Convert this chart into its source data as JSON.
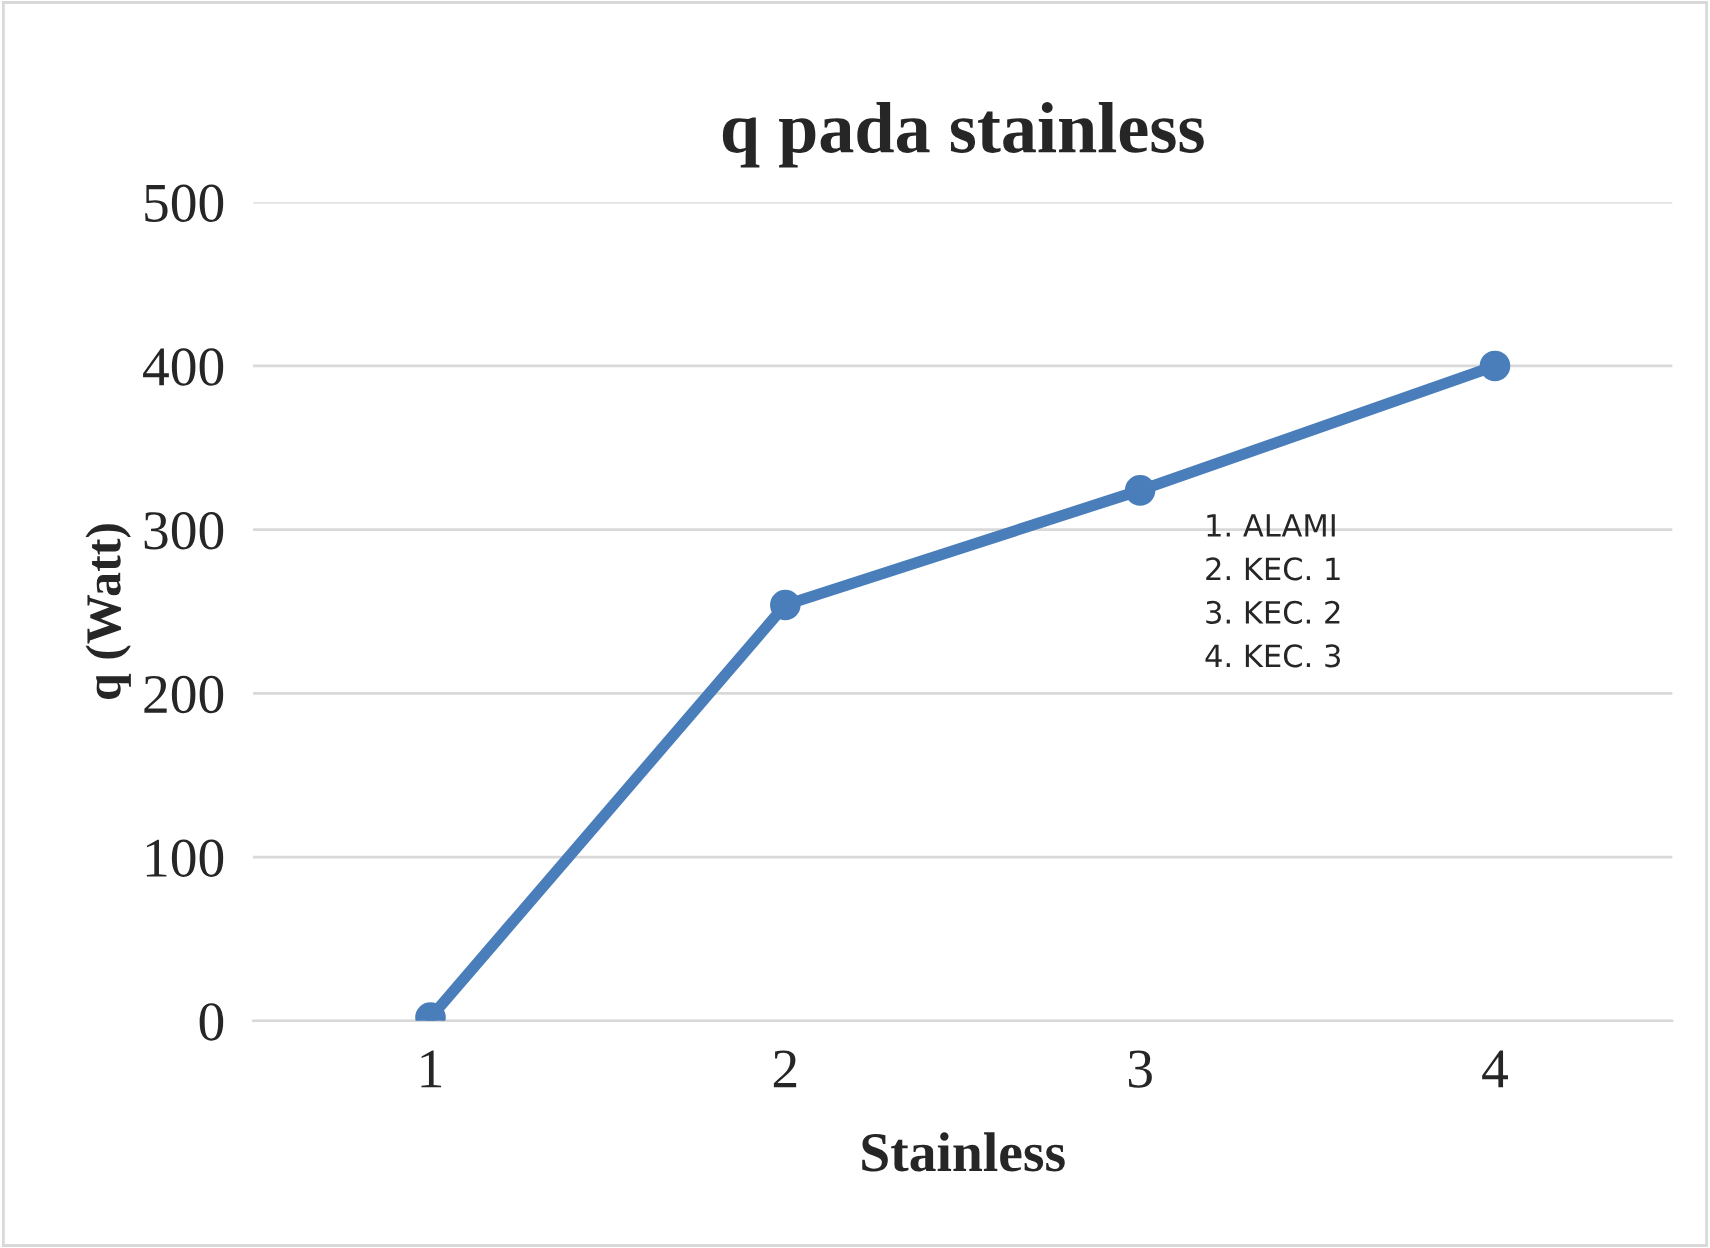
{
  "chart_data": {
    "type": "line",
    "title": "q pada stainless",
    "xlabel": "Stainless",
    "ylabel": "q (Watt)",
    "categories": [
      "1",
      "2",
      "3",
      "4"
    ],
    "series": [
      {
        "color": "#4a7ebb",
        "values": [
          2,
          254,
          324,
          400
        ]
      }
    ],
    "ylim": [
      0,
      500
    ],
    "yticks": [
      0,
      100,
      200,
      300,
      400,
      500
    ],
    "grid": "y",
    "marker": "circle",
    "line_style": "solid",
    "legend": false,
    "annotations": [
      "1. ALAMI\n2. KEC. 1\n3. KEC. 2\n4. KEC. 3"
    ]
  }
}
